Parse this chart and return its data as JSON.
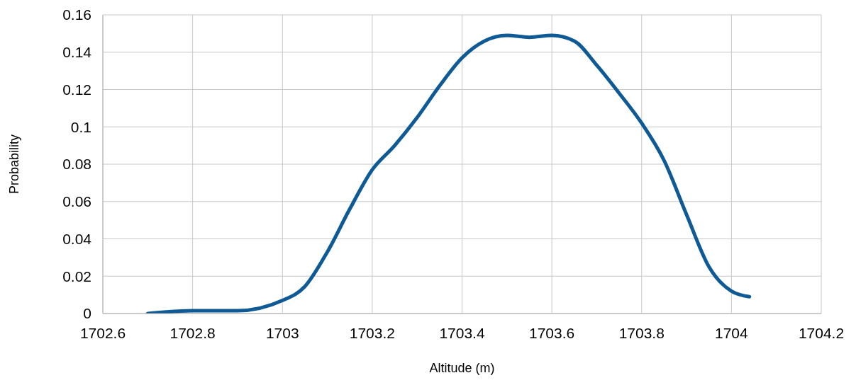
{
  "chart_data": {
    "type": "line",
    "xlabel": "Altitude (m)",
    "ylabel": "Probability",
    "x": [
      1702.7,
      1702.8,
      1702.9,
      1703.0,
      1703.05,
      1703.1,
      1703.15,
      1703.2,
      1703.25,
      1703.3,
      1703.35,
      1703.4,
      1703.45,
      1703.5,
      1703.55,
      1703.6,
      1703.65,
      1703.7,
      1703.75,
      1703.8,
      1703.85,
      1703.9,
      1703.95,
      1704.0,
      1704.04
    ],
    "series": [
      {
        "color": "#0e5a96",
        "values": [
          0,
          0.0015,
          0.0015,
          0.007,
          0.0145,
          0.033,
          0.056,
          0.077,
          0.09,
          0.105,
          0.122,
          0.137,
          0.146,
          0.149,
          0.148,
          0.149,
          0.146,
          0.133,
          0.118,
          0.102,
          0.082,
          0.053,
          0.025,
          0.012,
          0.009
        ]
      }
    ],
    "xlim": [
      1702.6,
      1704.2
    ],
    "xticks": [
      1702.6,
      1702.8,
      1703,
      1703.2,
      1703.4,
      1703.6,
      1703.8,
      1704,
      1704.2
    ],
    "ylim": [
      0,
      0.16
    ],
    "yticks": [
      0,
      0.02,
      0.04,
      0.06,
      0.08,
      0.1,
      0.12,
      0.14,
      0.16
    ],
    "grid": true,
    "legend": false,
    "marker": "none",
    "line_style": "solid"
  }
}
